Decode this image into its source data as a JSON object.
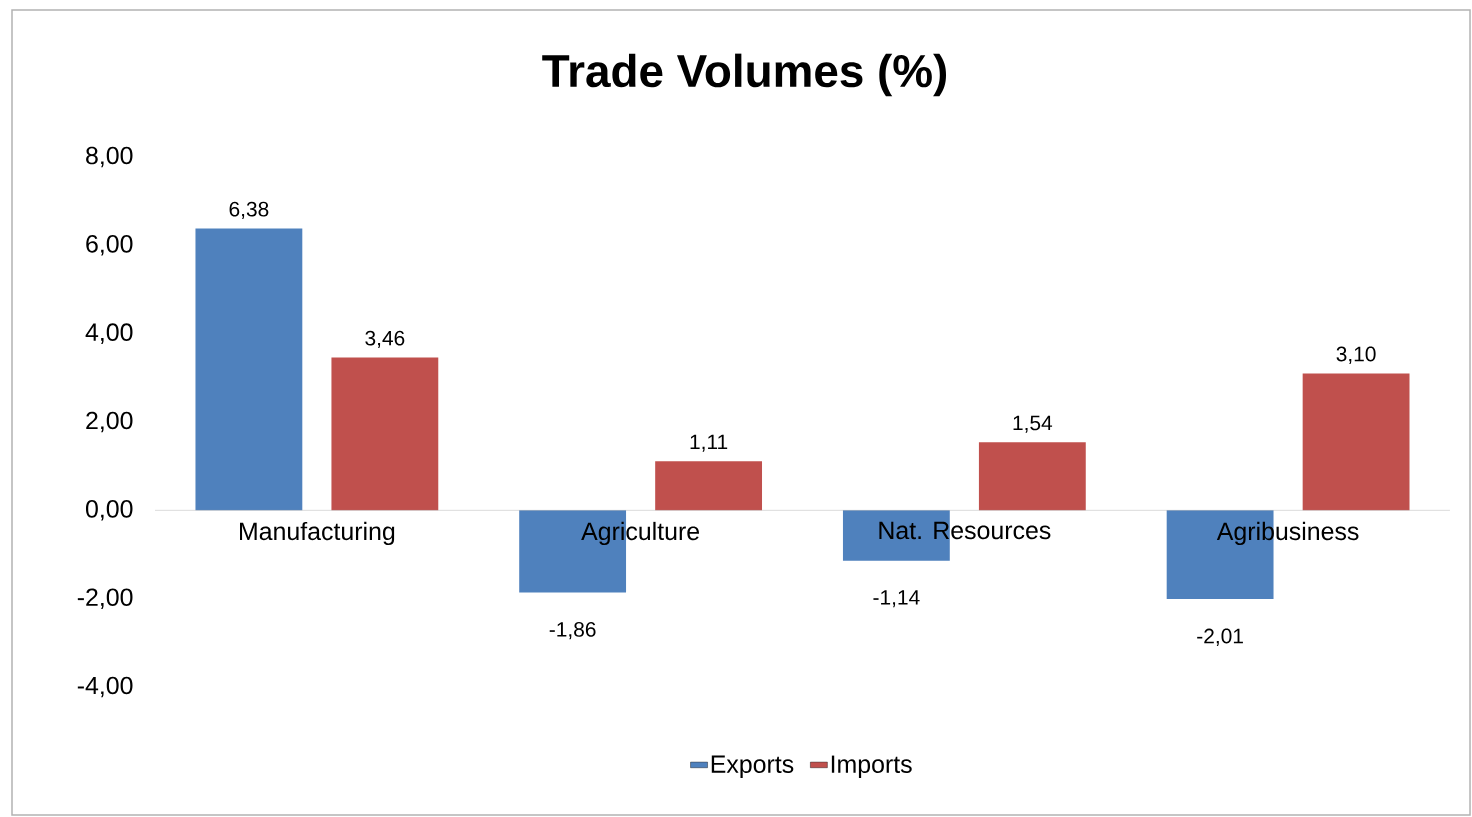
{
  "chart_data": {
    "type": "bar",
    "title": "Trade Volumes (%)",
    "categories": [
      "Manufacturing",
      "Agriculture",
      "Nat. Resources",
      "Agribusiness"
    ],
    "series": [
      {
        "name": "Exports",
        "color": "#4f81bd",
        "values": [
          6.38,
          -1.86,
          -1.14,
          -2.01
        ],
        "value_labels": [
          "6,38",
          "-1,86",
          "-1,14",
          "-2,01"
        ]
      },
      {
        "name": "Imports",
        "color": "#c0504d",
        "values": [
          3.46,
          1.11,
          1.54,
          3.1
        ],
        "value_labels": [
          "3,46",
          "1,11",
          "1,54",
          "3,10"
        ]
      }
    ],
    "ylim": [
      -4,
      8
    ],
    "yticks": [
      {
        "value": -4,
        "label": "-4,00"
      },
      {
        "value": -2,
        "label": "-2,00"
      },
      {
        "value": 0,
        "label": "0,00"
      },
      {
        "value": 2,
        "label": "2,00"
      },
      {
        "value": 4,
        "label": "4,00"
      },
      {
        "value": 6,
        "label": "6,00"
      },
      {
        "value": 8,
        "label": "8,00"
      }
    ],
    "legend": "bottom"
  }
}
